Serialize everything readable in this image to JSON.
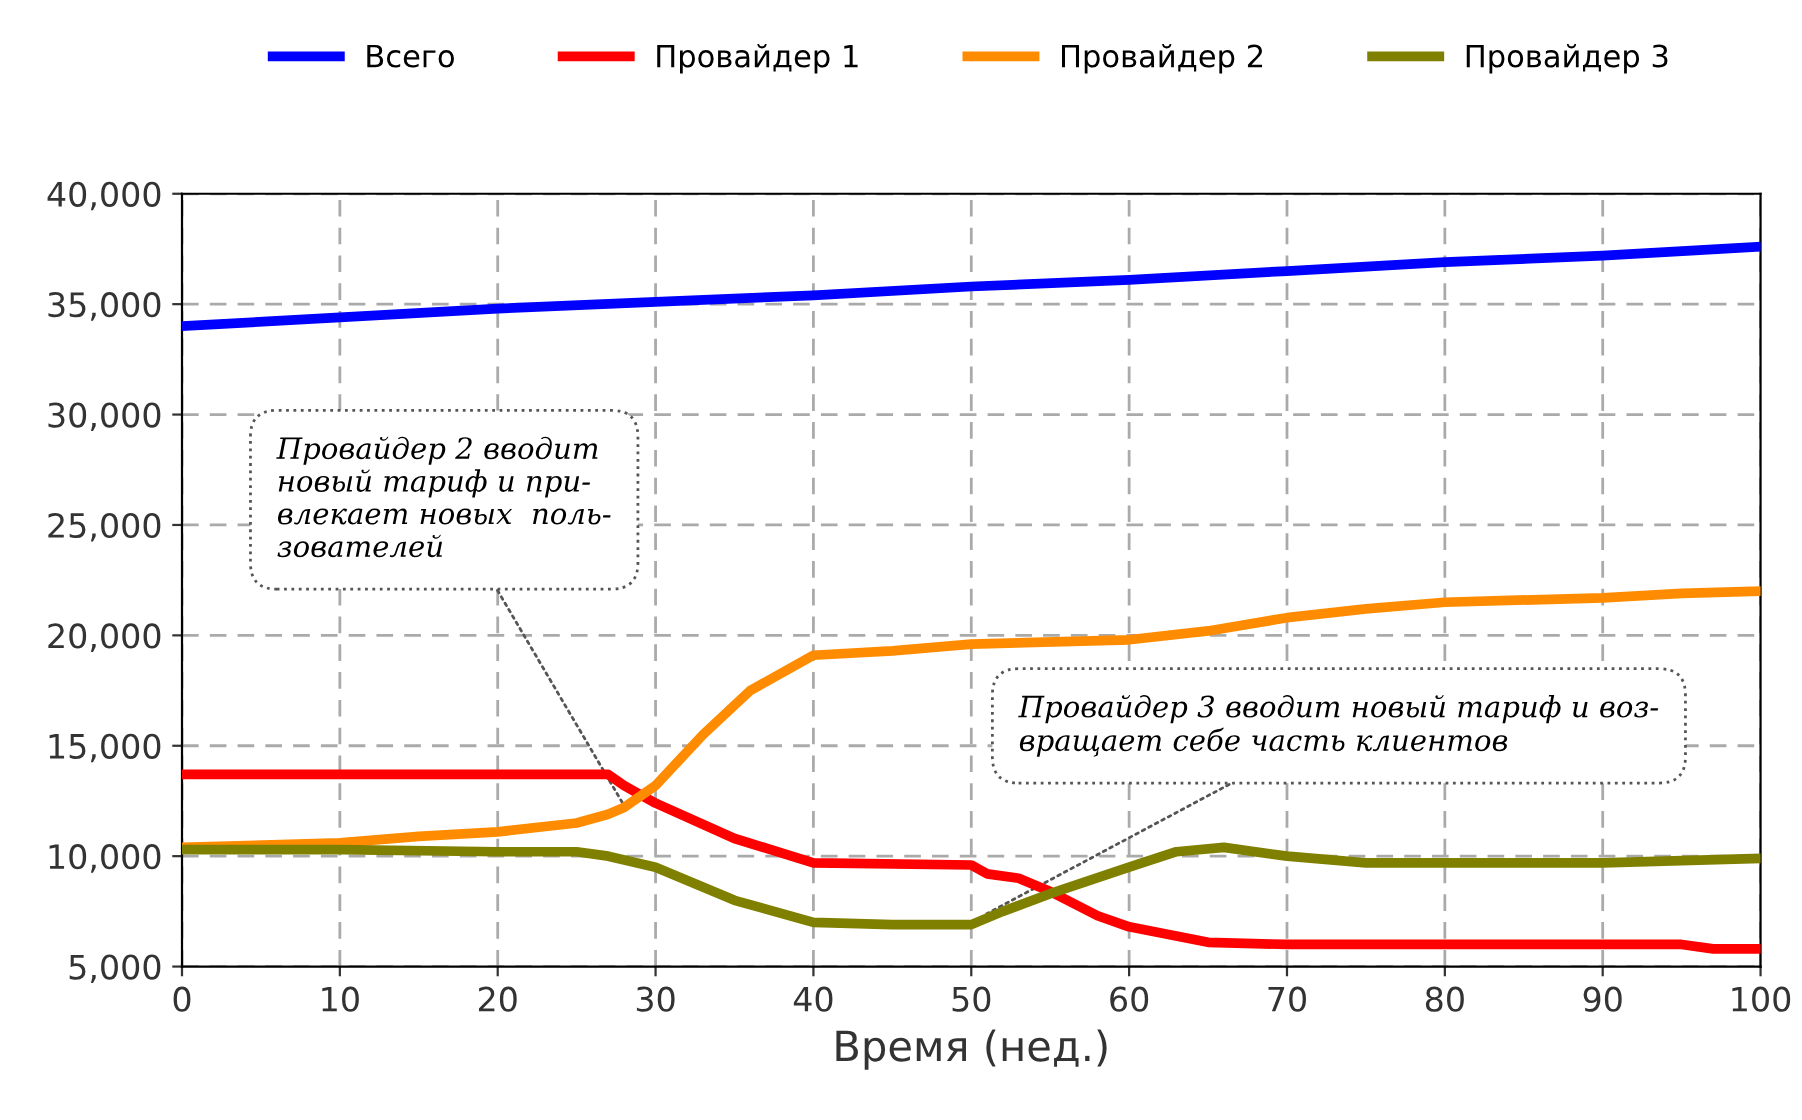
{
  "chart_data": {
    "type": "line",
    "xlabel": "Время (нед.)",
    "xlim": [
      0,
      100
    ],
    "ylim": [
      5000,
      40000
    ],
    "xticks": [
      0,
      10,
      20,
      30,
      40,
      50,
      60,
      70,
      80,
      90,
      100
    ],
    "yticks": [
      {
        "value": 5000,
        "label": "5,000"
      },
      {
        "value": 10000,
        "label": "10,000"
      },
      {
        "value": 15000,
        "label": "15,000"
      },
      {
        "value": 20000,
        "label": "20,000"
      },
      {
        "value": 25000,
        "label": "25,000"
      },
      {
        "value": 30000,
        "label": "30,000"
      },
      {
        "value": 35000,
        "label": "35,000"
      },
      {
        "value": 40000,
        "label": "40,000"
      }
    ],
    "grid": true,
    "legend": "top",
    "line_style": "solid",
    "marker": "none",
    "series": [
      {
        "name": "Всего",
        "color": "#0000ff",
        "x": [
          0,
          10,
          20,
          30,
          40,
          50,
          60,
          70,
          80,
          90,
          100
        ],
        "values": [
          34000,
          34400,
          34800,
          35100,
          35400,
          35800,
          36100,
          36500,
          36900,
          37200,
          37600
        ]
      },
      {
        "name": "Провайдер 1",
        "color": "#ff0000",
        "x": [
          0,
          27,
          28,
          30,
          35,
          40,
          50,
          51,
          53,
          55,
          58,
          60,
          65,
          70,
          95,
          97,
          100
        ],
        "values": [
          13700,
          13700,
          13200,
          12400,
          10800,
          9700,
          9600,
          9200,
          9000,
          8400,
          7300,
          6800,
          6100,
          6000,
          6000,
          5800,
          5800
        ]
      },
      {
        "name": "Провайдер 2",
        "color": "#ff8c00",
        "x": [
          0,
          10,
          15,
          20,
          25,
          27,
          28,
          30,
          33,
          36,
          40,
          45,
          50,
          60,
          65,
          70,
          75,
          80,
          90,
          95,
          100
        ],
        "values": [
          10400,
          10600,
          10900,
          11100,
          11500,
          11900,
          12200,
          13200,
          15500,
          17500,
          19100,
          19300,
          19600,
          19800,
          20200,
          20800,
          21200,
          21500,
          21700,
          21900,
          22000
        ]
      },
      {
        "name": "Провайдер 3",
        "color": "#808000",
        "x": [
          0,
          10,
          20,
          25,
          27,
          30,
          35,
          40,
          45,
          50,
          52,
          55,
          60,
          63,
          66,
          70,
          75,
          80,
          90,
          100
        ],
        "values": [
          10300,
          10300,
          10200,
          10200,
          10000,
          9500,
          8000,
          7000,
          6900,
          6900,
          7500,
          8300,
          9500,
          10200,
          10400,
          10000,
          9700,
          9700,
          9700,
          9900
        ]
      }
    ],
    "annotations": [
      {
        "text": "Провайдер 2 вводит\nновый тариф и при-\nвлекает новых  поль-\nзователей",
        "x": 28,
        "y": 12300
      },
      {
        "text": "Провайдер 3 вводит новый тариф и воз-\nвращает себе часть клиентов",
        "x": 51,
        "y": 7400
      }
    ]
  }
}
